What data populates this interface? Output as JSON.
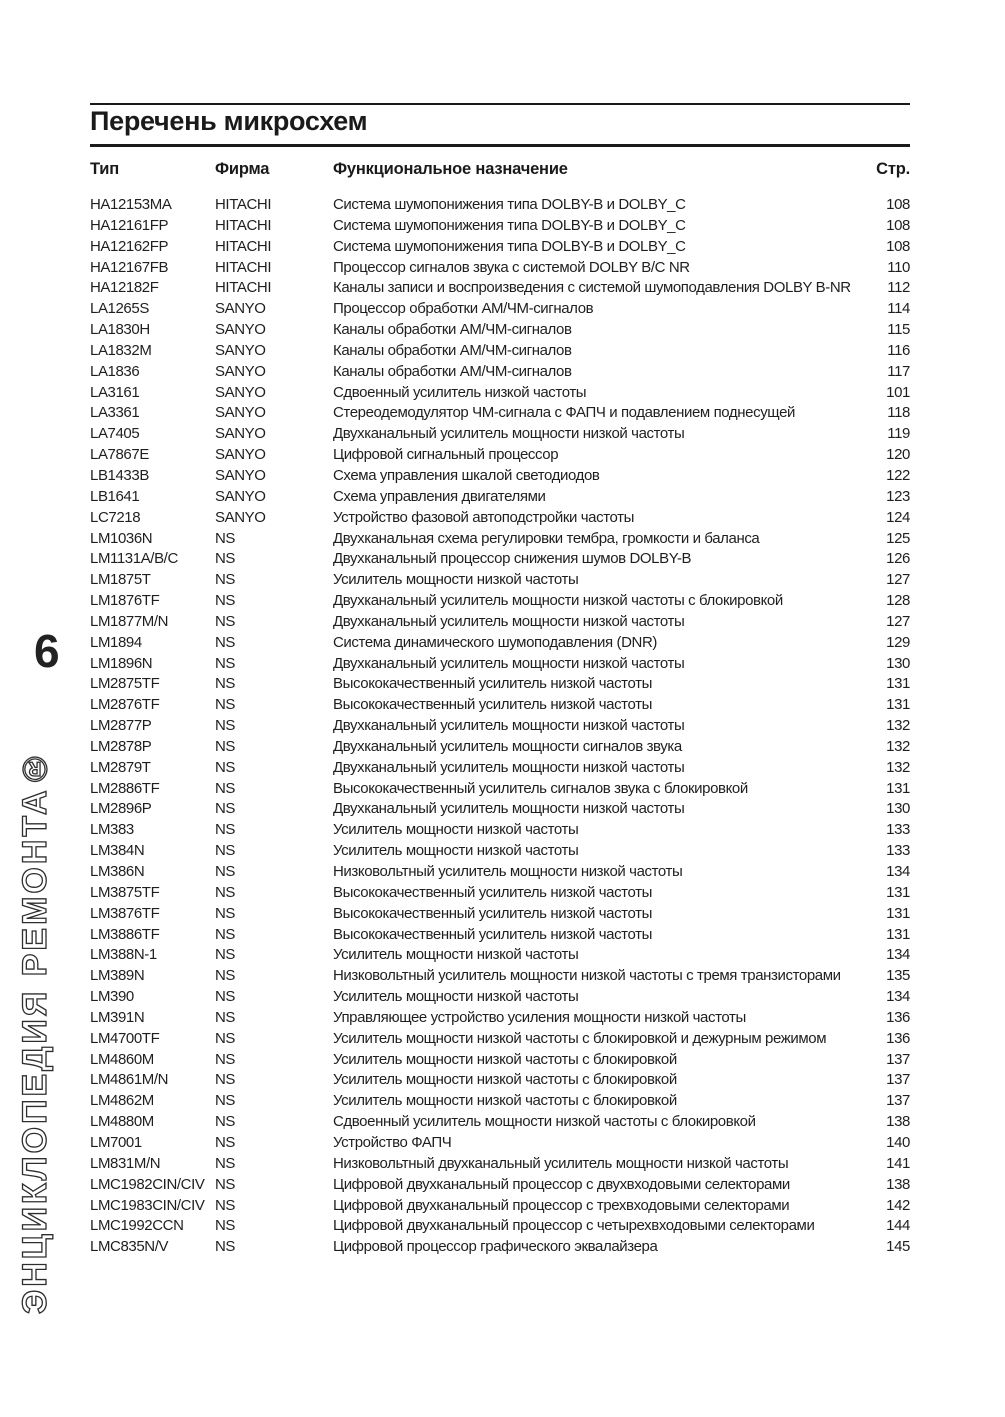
{
  "page": {
    "title": "Перечень микросхем"
  },
  "sidebar": {
    "chapter_number": "6",
    "brand_vertical_text": "ЭНЦИКЛОПЕДИЯ РЕМОНТА®"
  },
  "table": {
    "headers": {
      "type": "Тип",
      "firm": "Фирма",
      "function": "Функциональное назначение",
      "page": "Стр."
    },
    "rows": [
      {
        "type": "HA12153MA",
        "firm": "HITACHI",
        "desc": "Система шумопонижения типа DOLBY-B и DOLBY_C",
        "page": "108"
      },
      {
        "type": "HA12161FP",
        "firm": "HITACHI",
        "desc": "Система шумопонижения типа DOLBY-B и DOLBY_C",
        "page": "108"
      },
      {
        "type": "HA12162FP",
        "firm": "HITACHI",
        "desc": "Система шумопонижения типа DOLBY-B и DOLBY_C",
        "page": "108"
      },
      {
        "type": "HA12167FB",
        "firm": "HITACHI",
        "desc": "Процессор сигналов звука с системой DOLBY B/C NR",
        "page": "110"
      },
      {
        "type": "HA12182F",
        "firm": "HITACHI",
        "desc": "Каналы записи и воспроизведения с системой шумоподавления DOLBY B-NR",
        "page": "112"
      },
      {
        "type": "LA1265S",
        "firm": "SANYO",
        "desc": "Процессор обработки АМ/ЧМ-сигналов",
        "page": "114"
      },
      {
        "type": "LA1830H",
        "firm": "SANYO",
        "desc": "Каналы обработки АМ/ЧМ-сигналов",
        "page": "115"
      },
      {
        "type": "LA1832M",
        "firm": "SANYO",
        "desc": "Каналы обработки АМ/ЧМ-сигналов",
        "page": "116"
      },
      {
        "type": "LA1836",
        "firm": "SANYO",
        "desc": "Каналы обработки АМ/ЧМ-сигналов",
        "page": "117"
      },
      {
        "type": "LA3161",
        "firm": "SANYO",
        "desc": "Сдвоенный усилитель низкой частоты",
        "page": "101"
      },
      {
        "type": "LA3361",
        "firm": "SANYO",
        "desc": "Стереодемодулятор ЧМ-сигнала с ФАПЧ и подавлением поднесущей",
        "page": "118"
      },
      {
        "type": "LA7405",
        "firm": "SANYO",
        "desc": "Двухканальный усилитель мощности низкой частоты",
        "page": "119"
      },
      {
        "type": "LA7867E",
        "firm": "SANYO",
        "desc": "Цифровой сигнальный процессор",
        "page": "120"
      },
      {
        "type": "LB1433B",
        "firm": "SANYO",
        "desc": "Схема управления шкалой светодиодов",
        "page": "122"
      },
      {
        "type": "LB1641",
        "firm": "SANYO",
        "desc": "Схема управления двигателями",
        "page": "123"
      },
      {
        "type": "LC7218",
        "firm": "SANYO",
        "desc": "Устройство фазовой автоподстройки частоты",
        "page": "124"
      },
      {
        "type": "LM1036N",
        "firm": "NS",
        "desc": "Двухканальная схема регулировки тембра, громкости и баланса",
        "page": "125"
      },
      {
        "type": "LM1131A/B/C",
        "firm": "NS",
        "desc": "Двухканальный процессор снижения шумов DOLBY-B",
        "page": "126"
      },
      {
        "type": "LM1875T",
        "firm": "NS",
        "desc": "Усилитель мощности низкой частоты",
        "page": "127"
      },
      {
        "type": "LM1876TF",
        "firm": "NS",
        "desc": "Двухканальный усилитель мощности низкой частоты с блокировкой",
        "page": "128"
      },
      {
        "type": "LM1877M/N",
        "firm": "NS",
        "desc": "Двухканальный усилитель мощности низкой частоты",
        "page": "127"
      },
      {
        "type": "LM1894",
        "firm": "NS",
        "desc": "Система динамического шумоподавления (DNR)",
        "page": "129"
      },
      {
        "type": "LM1896N",
        "firm": "NS",
        "desc": "Двухканальный усилитель мощности низкой частоты",
        "page": "130"
      },
      {
        "type": "LM2875TF",
        "firm": "NS",
        "desc": "Высококачественный усилитель низкой частоты",
        "page": "131"
      },
      {
        "type": "LM2876TF",
        "firm": "NS",
        "desc": "Высококачественный усилитель низкой частоты",
        "page": "131"
      },
      {
        "type": "LM2877P",
        "firm": "NS",
        "desc": "Двухканальный усилитель мощности низкой частоты",
        "page": "132"
      },
      {
        "type": "LM2878P",
        "firm": "NS",
        "desc": "Двухканальный усилитель мощности сигналов звука",
        "page": "132"
      },
      {
        "type": "LM2879T",
        "firm": "NS",
        "desc": "Двухканальный усилитель мощности низкой частоты",
        "page": "132"
      },
      {
        "type": "LM2886TF",
        "firm": "NS",
        "desc": "Высококачественный усилитель сигналов звука с блокировкой",
        "page": "131"
      },
      {
        "type": "LM2896P",
        "firm": "NS",
        "desc": "Двухканальный усилитель мощности низкой частоты",
        "page": "130"
      },
      {
        "type": "LM383",
        "firm": "NS",
        "desc": "Усилитель мощности низкой частоты",
        "page": "133"
      },
      {
        "type": "LM384N",
        "firm": "NS",
        "desc": "Усилитель мощности низкой частоты",
        "page": "133"
      },
      {
        "type": "LM386N",
        "firm": "NS",
        "desc": "Низковольтный усилитель мощности низкой частоты",
        "page": "134"
      },
      {
        "type": "LM3875TF",
        "firm": "NS",
        "desc": "Высококачественный усилитель низкой частоты",
        "page": "131"
      },
      {
        "type": "LM3876TF",
        "firm": "NS",
        "desc": "Высококачественный усилитель низкой частоты",
        "page": "131"
      },
      {
        "type": "LM3886TF",
        "firm": "NS",
        "desc": "Высококачественный усилитель низкой частоты",
        "page": "131"
      },
      {
        "type": "LM388N-1",
        "firm": "NS",
        "desc": "Усилитель мощности низкой частоты",
        "page": "134"
      },
      {
        "type": "LM389N",
        "firm": "NS",
        "desc": "Низковольтный усилитель мощности низкой частоты с тремя транзисторами",
        "page": "135"
      },
      {
        "type": "LM390",
        "firm": "NS",
        "desc": "Усилитель мощности низкой частоты",
        "page": "134"
      },
      {
        "type": "LM391N",
        "firm": "NS",
        "desc": "Управляющее устройство усиления мощности низкой частоты",
        "page": "136"
      },
      {
        "type": "LM4700TF",
        "firm": "NS",
        "desc": "Усилитель мощности низкой частоты с блокировкой и дежурным режимом",
        "page": "136"
      },
      {
        "type": "LM4860M",
        "firm": "NS",
        "desc": "Усилитель мощности низкой частоты с блокировкой",
        "page": "137"
      },
      {
        "type": "LM4861M/N",
        "firm": "NS",
        "desc": "Усилитель мощности низкой частоты с блокировкой",
        "page": "137"
      },
      {
        "type": "LM4862M",
        "firm": "NS",
        "desc": "Усилитель мощности низкой частоты с блокировкой",
        "page": "137"
      },
      {
        "type": "LM4880M",
        "firm": "NS",
        "desc": "Сдвоенный усилитель мощности низкой частоты с блокировкой",
        "page": "138"
      },
      {
        "type": "LM7001",
        "firm": "NS",
        "desc": "Устройство ФАПЧ",
        "page": "140"
      },
      {
        "type": "LM831M/N",
        "firm": "NS",
        "desc": "Низковольтный двухканальный усилитель мощности низкой частоты",
        "page": "141"
      },
      {
        "type": "LMC1982CIN/CIV",
        "firm": "NS",
        "desc": "Цифровой двухканальный процессор с двухвходовыми селекторами",
        "page": "138"
      },
      {
        "type": "LMC1983CIN/CIV",
        "firm": "NS",
        "desc": "Цифровой двухканальный процессор с трехвходовыми селекторами",
        "page": "142"
      },
      {
        "type": "LMC1992CCN",
        "firm": "NS",
        "desc": "Цифровой двухканальный процессор с четырехвходовыми селекторами",
        "page": "144"
      },
      {
        "type": "LMC835N/V",
        "firm": "NS",
        "desc": "Цифровой процессор графического эквалайзера",
        "page": "145"
      }
    ]
  }
}
